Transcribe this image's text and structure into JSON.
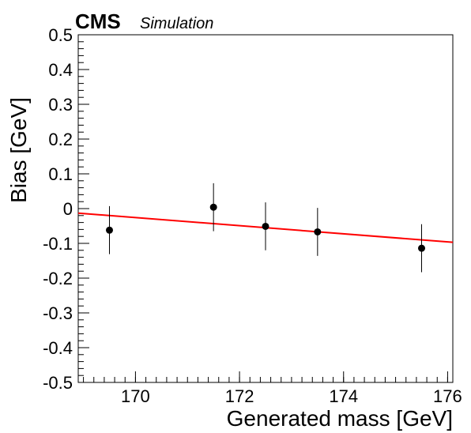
{
  "chart_data": {
    "type": "scatter",
    "experiment_label": "CMS",
    "experiment_sublabel": "Simulation",
    "xlabel": "Generated mass [GeV]",
    "ylabel": "Bias [GeV]",
    "xlim": [
      168.9,
      176.1
    ],
    "ylim": [
      -0.5,
      0.5
    ],
    "x_ticks": [
      170,
      172,
      174,
      176
    ],
    "x_tick_labels": [
      "170",
      "172",
      "174",
      "176"
    ],
    "y_ticks": [
      -0.5,
      -0.4,
      -0.3,
      -0.2,
      -0.1,
      0,
      0.1,
      0.2,
      0.3,
      0.4,
      0.5
    ],
    "y_tick_labels": [
      "-0.5",
      "-0.4",
      "-0.3",
      "-0.2",
      "-0.1",
      "0",
      "0.1",
      "0.2",
      "0.3",
      "0.4",
      "0.5"
    ],
    "grid": false,
    "series": [
      {
        "kind": "points_with_errors",
        "color": "#000000",
        "x": [
          169.5,
          171.5,
          172.5,
          173.5,
          175.5
        ],
        "y": [
          -0.062,
          0.004,
          -0.051,
          -0.067,
          -0.114
        ],
        "yerr": [
          0.069,
          0.069,
          0.069,
          0.069,
          0.069
        ]
      },
      {
        "kind": "fit_line",
        "color": "#ff0000",
        "x": [
          168.9,
          176.1
        ],
        "y": [
          -0.013,
          -0.097
        ]
      }
    ]
  }
}
